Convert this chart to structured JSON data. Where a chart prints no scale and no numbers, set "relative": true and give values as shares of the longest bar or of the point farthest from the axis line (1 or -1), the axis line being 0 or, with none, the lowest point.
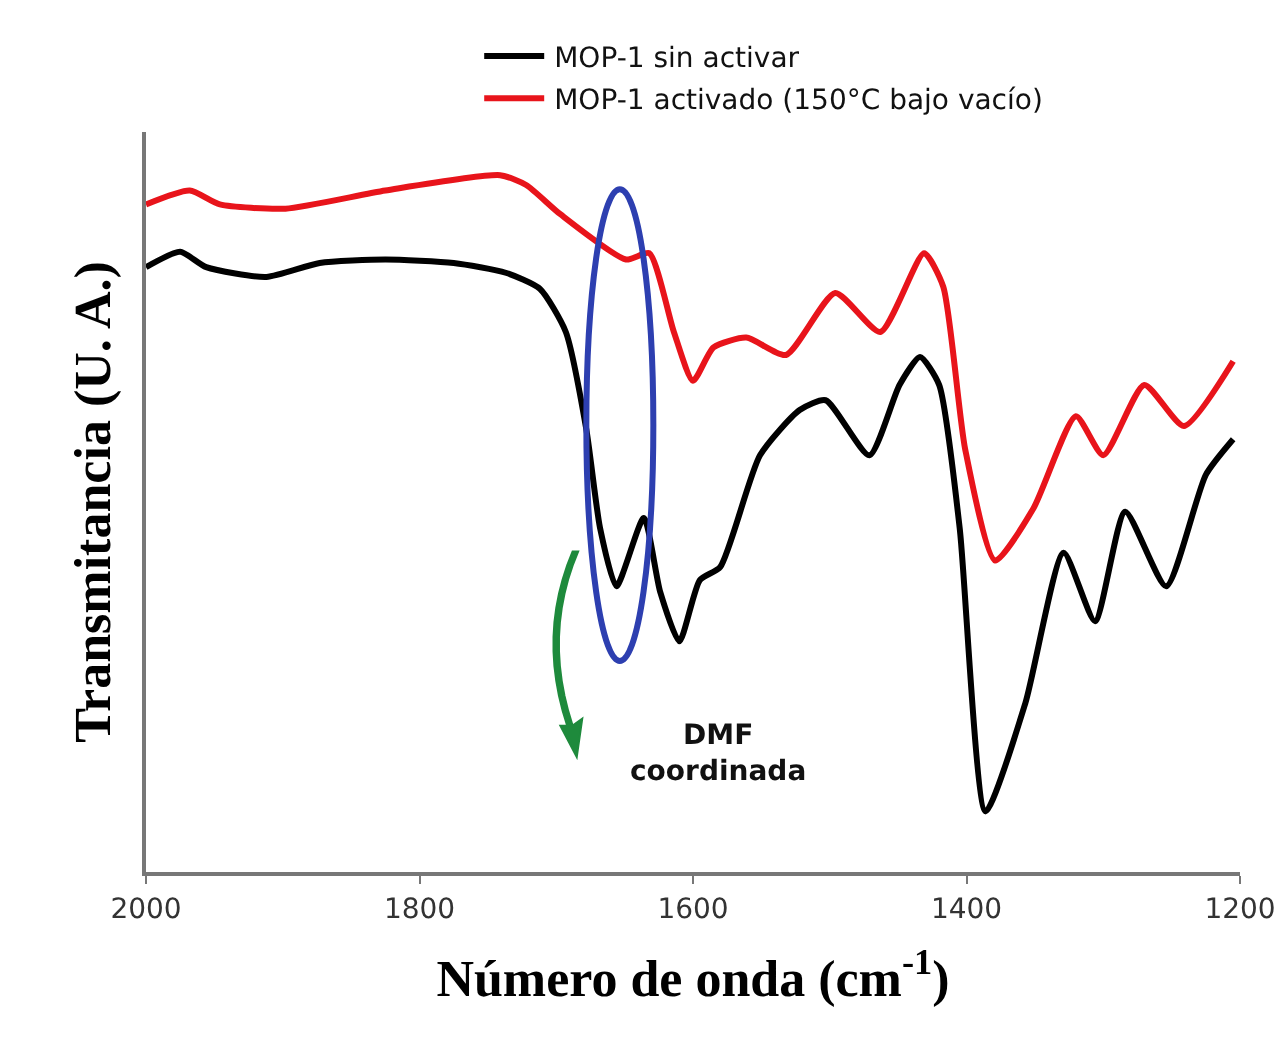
{
  "chart_data": {
    "type": "line",
    "relative": true,
    "xlabel": "Número de onda (cm$^{-1}$)",
    "ylabel": "Transmitancia (U. A.)",
    "xlim": [
      2000,
      1200
    ],
    "xticks": [
      2000,
      1800,
      1600,
      1400,
      1200
    ],
    "grid": false,
    "legend": "top",
    "marker": "none",
    "line_style": "solid",
    "annotations": [
      "DMF coordinada"
    ],
    "series": [
      {
        "name": "MOP-1 sin activar",
        "color": "#000000",
        "x": [
          2000,
          1975,
          1956,
          1912,
          1873,
          1825,
          1775,
          1737,
          1712,
          1693,
          1678,
          1668,
          1656,
          1636,
          1624,
          1610,
          1595,
          1580,
          1551,
          1522,
          1503,
          1471,
          1449,
          1434,
          1420,
          1405,
          1386,
          1357,
          1329,
          1306,
          1284,
          1254,
          1225,
          1205
        ],
        "values": [
          0.868,
          0.89,
          0.868,
          0.854,
          0.874,
          0.879,
          0.874,
          0.86,
          0.837,
          0.775,
          0.635,
          0.494,
          0.41,
          0.508,
          0.402,
          0.331,
          0.419,
          0.438,
          0.598,
          0.663,
          0.677,
          0.598,
          0.699,
          0.739,
          0.699,
          0.494,
          0.087,
          0.242,
          0.458,
          0.36,
          0.517,
          0.41,
          0.57,
          0.621
        ]
      },
      {
        "name": "MOP-1 activado (150°C bajo vacío)",
        "color": "#e8141b",
        "x": [
          2000,
          1968,
          1946,
          1898,
          1825,
          1741,
          1722,
          1697,
          1649,
          1632,
          1614,
          1600,
          1585,
          1561,
          1532,
          1496,
          1463,
          1431,
          1417,
          1401,
          1379,
          1351,
          1320,
          1300,
          1270,
          1241,
          1205
        ],
        "values": [
          0.958,
          0.978,
          0.958,
          0.952,
          0.978,
          1,
          0.986,
          0.944,
          0.879,
          0.888,
          0.775,
          0.705,
          0.753,
          0.767,
          0.742,
          0.831,
          0.775,
          0.888,
          0.84,
          0.607,
          0.447,
          0.522,
          0.654,
          0.598,
          0.699,
          0.64,
          0.733
        ]
      }
    ]
  }
}
